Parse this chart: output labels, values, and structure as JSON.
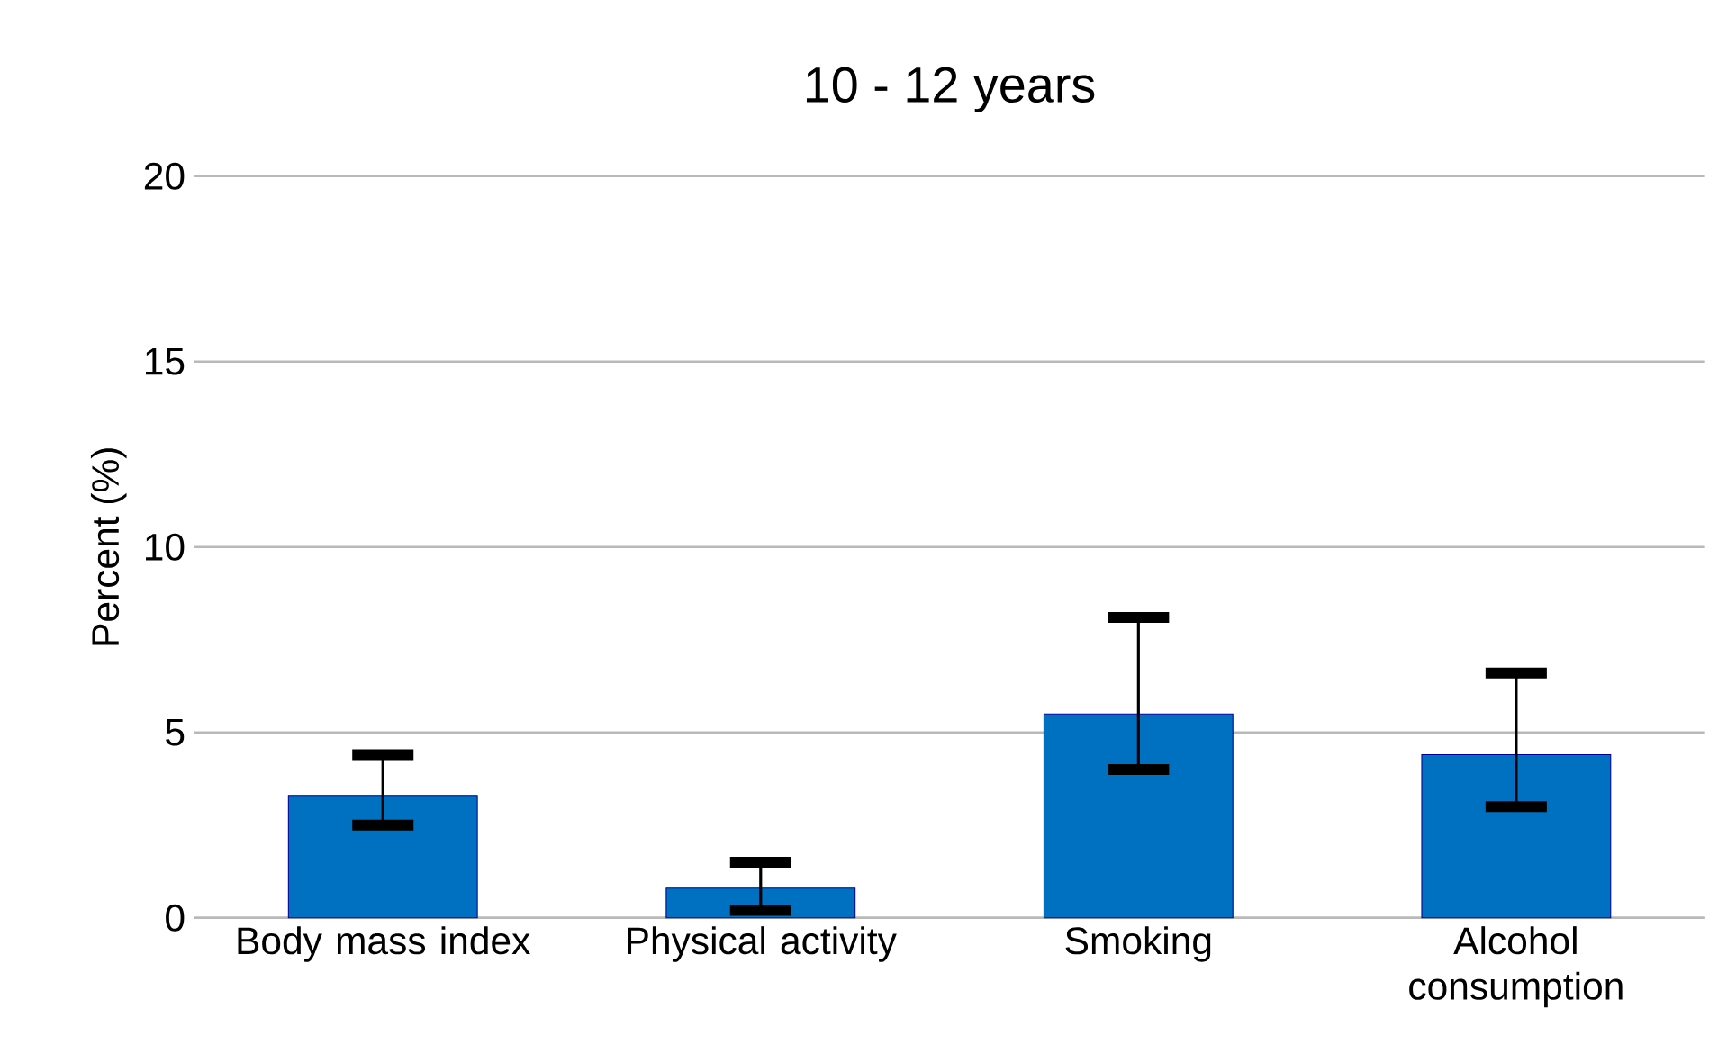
{
  "chart_data": {
    "type": "bar",
    "title": "10 - 12 years",
    "ylabel": "Percent (%)",
    "categories": [
      "Body mass index",
      "Physical activity",
      "Smoking",
      "Alcohol consumption"
    ],
    "values": [
      3.3,
      0.8,
      5.5,
      4.4
    ],
    "errors": [
      [
        2.5,
        4.4
      ],
      [
        0.2,
        1.5
      ],
      [
        4.0,
        8.1
      ],
      [
        3.0,
        6.6
      ]
    ],
    "color": "#0070c0",
    "ylim": [
      0,
      20
    ],
    "yticks": [
      0,
      5,
      10,
      15,
      20
    ],
    "grid": "y"
  }
}
